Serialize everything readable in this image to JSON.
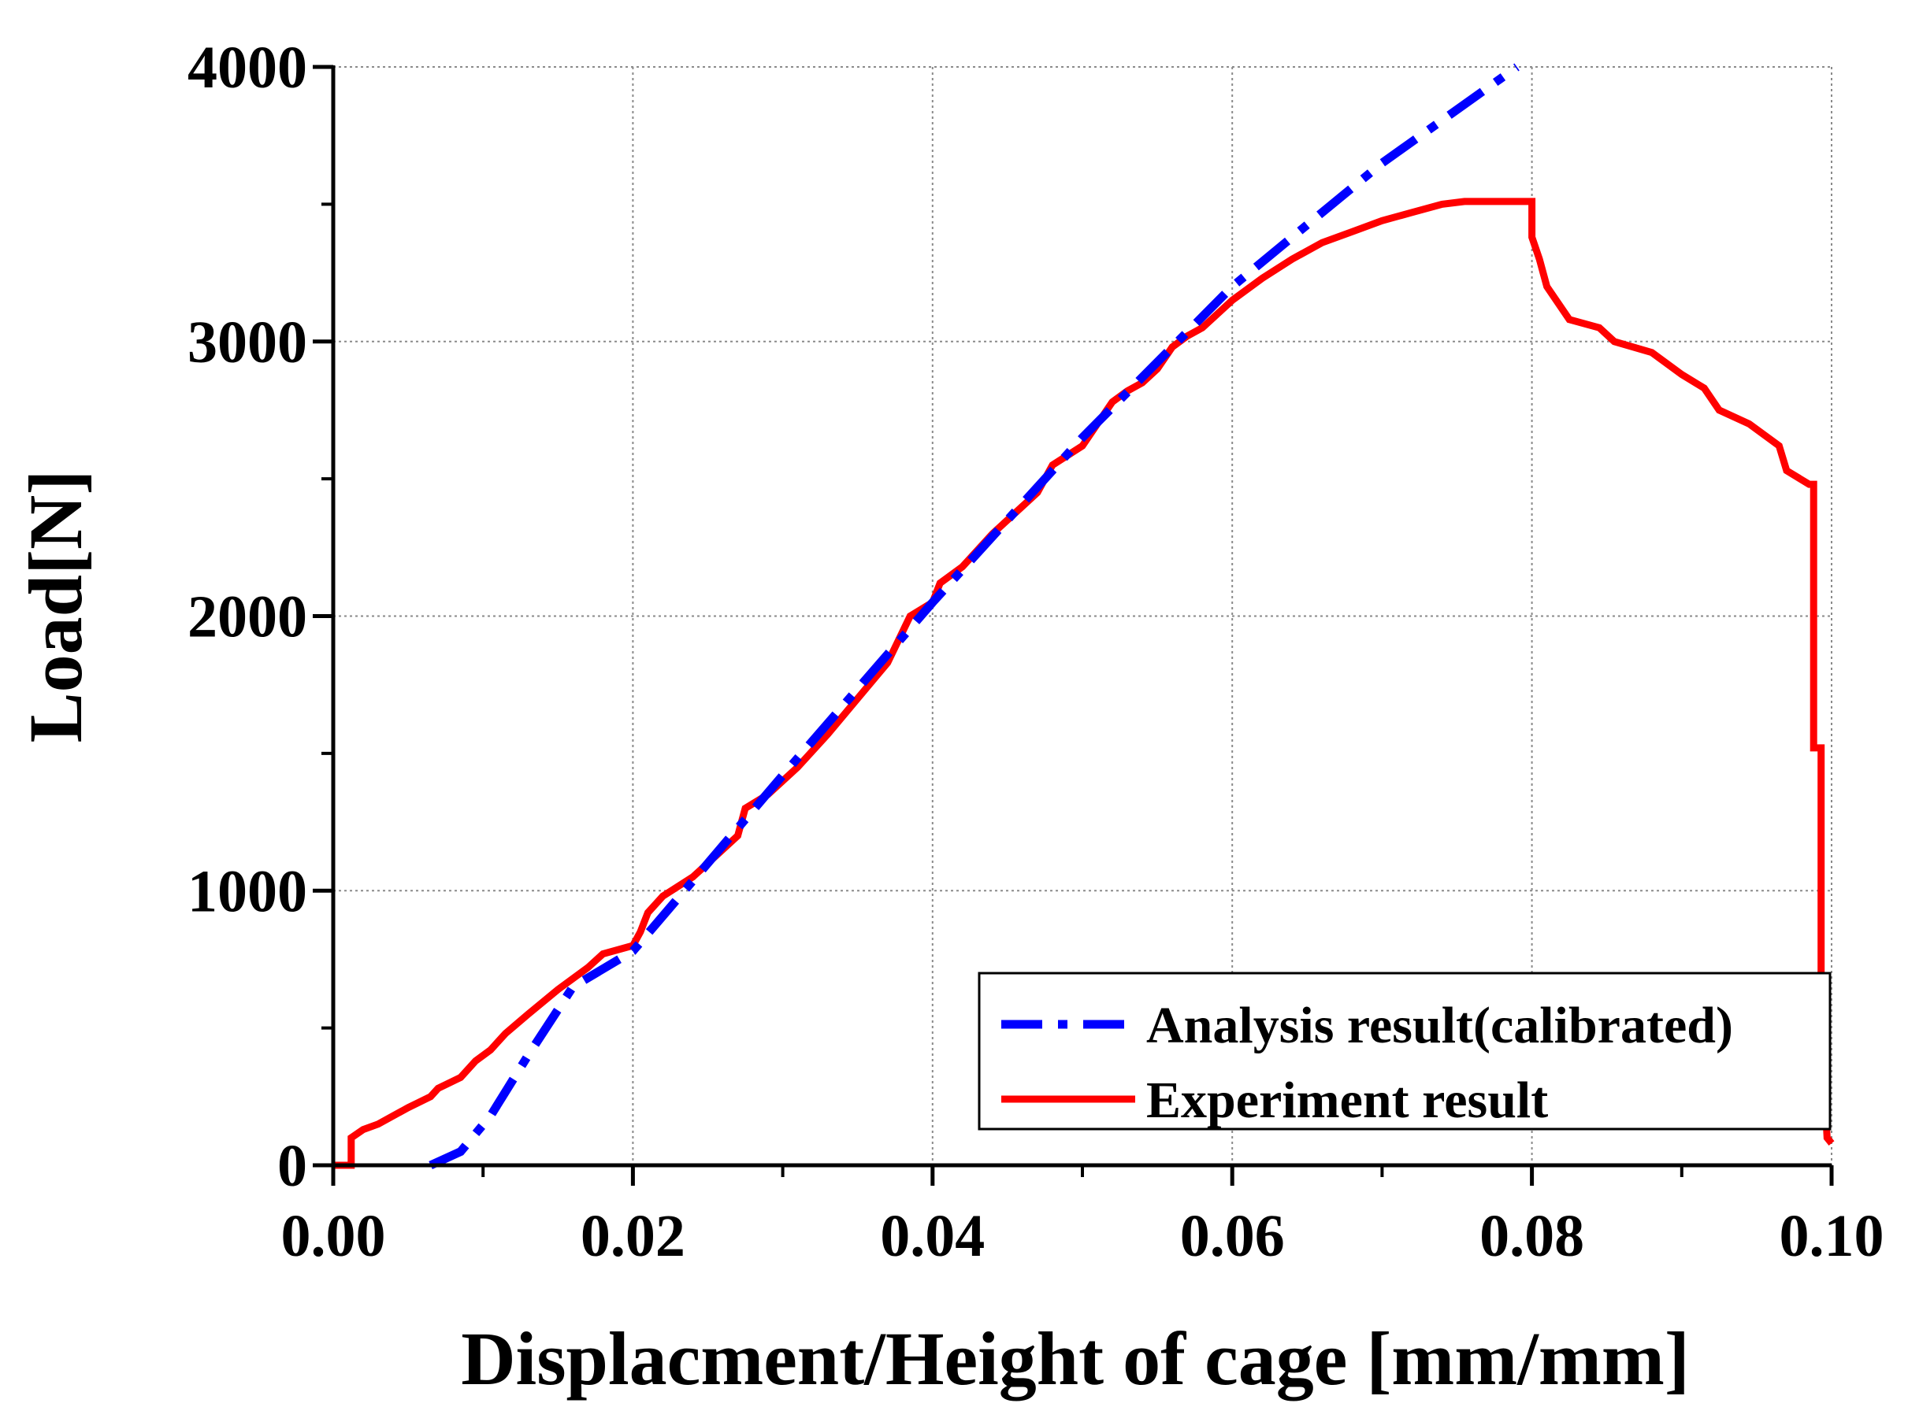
{
  "chart_data": {
    "type": "line",
    "title": "",
    "xlabel": "Displacment/Height of cage [mm/mm]",
    "ylabel": "Load[N]",
    "xlim": [
      0,
      0.1
    ],
    "ylim": [
      0,
      4000
    ],
    "x_ticks": [
      0,
      0.02,
      0.04,
      0.06,
      0.08,
      0.1
    ],
    "x_tick_labels": [
      "0.00",
      "0.02",
      "0.04",
      "0.06",
      "0.08",
      "0.10"
    ],
    "y_ticks": [
      0,
      1000,
      2000,
      3000,
      4000
    ],
    "y_tick_labels": [
      "0",
      "1000",
      "2000",
      "3000",
      "4000"
    ],
    "grid": true,
    "legend_position": "bottom-right",
    "series": [
      {
        "name": "Analysis result(calibrated)",
        "color": "#0000ff",
        "style": "dash-dot",
        "x": [
          0.0065,
          0.0085,
          0.0105,
          0.013,
          0.016,
          0.02,
          0.03,
          0.04,
          0.05,
          0.06,
          0.07,
          0.079
        ],
        "y": [
          0,
          50,
          180,
          400,
          650,
          780,
          1420,
          2050,
          2650,
          3200,
          3650,
          4000
        ]
      },
      {
        "name": "Experiment result",
        "color": "#ff0000",
        "style": "solid",
        "x": [
          0,
          0.0012,
          0.0012,
          0.002,
          0.003,
          0.004,
          0.005,
          0.0065,
          0.007,
          0.0085,
          0.0095,
          0.0105,
          0.0115,
          0.013,
          0.015,
          0.017,
          0.018,
          0.02,
          0.0205,
          0.021,
          0.022,
          0.024,
          0.025,
          0.027,
          0.0275,
          0.029,
          0.031,
          0.033,
          0.035,
          0.037,
          0.0385,
          0.04,
          0.0405,
          0.042,
          0.044,
          0.046,
          0.047,
          0.048,
          0.05,
          0.051,
          0.052,
          0.053,
          0.054,
          0.055,
          0.056,
          0.057,
          0.058,
          0.06,
          0.062,
          0.064,
          0.066,
          0.068,
          0.07,
          0.072,
          0.074,
          0.0755,
          0.076,
          0.08,
          0.08,
          0.0805,
          0.081,
          0.0825,
          0.0845,
          0.0855,
          0.088,
          0.09,
          0.0915,
          0.0925,
          0.0945,
          0.0965,
          0.097,
          0.0985,
          0.0988,
          0.0988,
          0.0993,
          0.0993,
          0.0995,
          0.0997,
          0.1
        ],
        "y": [
          0,
          0,
          100,
          130,
          150,
          180,
          210,
          250,
          280,
          320,
          380,
          420,
          480,
          550,
          640,
          720,
          770,
          800,
          850,
          920,
          980,
          1050,
          1100,
          1200,
          1300,
          1350,
          1450,
          1570,
          1700,
          1830,
          2000,
          2050,
          2120,
          2180,
          2300,
          2400,
          2450,
          2550,
          2620,
          2700,
          2780,
          2820,
          2850,
          2900,
          2980,
          3020,
          3050,
          3150,
          3230,
          3300,
          3360,
          3400,
          3440,
          3470,
          3500,
          3510,
          3510,
          3510,
          3380,
          3300,
          3200,
          3080,
          3050,
          3000,
          2960,
          2880,
          2830,
          2750,
          2700,
          2620,
          2530,
          2480,
          2480,
          1520,
          1520,
          700,
          300,
          100,
          80
        ]
      }
    ]
  }
}
